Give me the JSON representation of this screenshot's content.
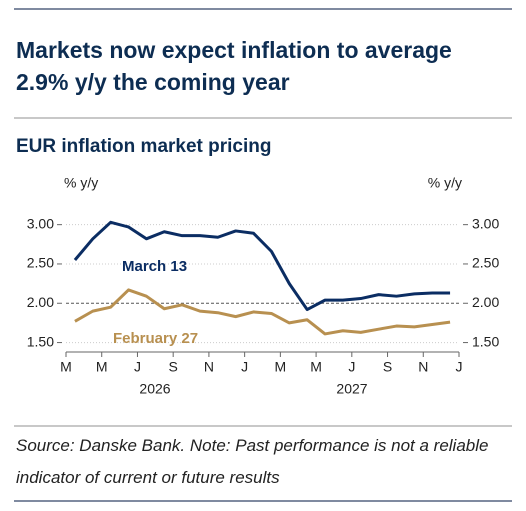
{
  "chart_data": {
    "type": "line",
    "title": "Markets now expect inflation to average 2.9% y/y the coming year",
    "subtitle": "EUR inflation market pricing",
    "ylabel": "% y/y",
    "y2label": "% y/y",
    "source": "Source: Danske Bank. Note: Past performance is not a reliable indicator of current or future results",
    "xlim": [
      0,
      22
    ],
    "xticks": [
      {
        "value": 0,
        "label": "M"
      },
      {
        "value": 2,
        "label": "M"
      },
      {
        "value": 4,
        "label": "J"
      },
      {
        "value": 6,
        "label": "S"
      },
      {
        "value": 8,
        "label": "N"
      },
      {
        "value": 10,
        "label": "J"
      },
      {
        "value": 12,
        "label": "M"
      },
      {
        "value": 14,
        "label": "M"
      },
      {
        "value": 16,
        "label": "J"
      },
      {
        "value": 18,
        "label": "S"
      },
      {
        "value": 20,
        "label": "N"
      },
      {
        "value": 22,
        "label": "J"
      }
    ],
    "year_labels": [
      "2026",
      "2027"
    ],
    "ylim": [
      1.38,
      3.25
    ],
    "yticks": [
      {
        "value": 1.5,
        "label": "1.50"
      },
      {
        "value": 2,
        "label": "2.00"
      },
      {
        "value": 2.5,
        "label": "2.50"
      },
      {
        "value": 3,
        "label": "3.00"
      }
    ],
    "y2lim": [
      1.38,
      3.25
    ],
    "y2ticks": [
      {
        "value": 1.5,
        "label": "1.50"
      },
      {
        "value": 2,
        "label": "2.00"
      },
      {
        "value": 2.5,
        "label": "2.50"
      },
      {
        "value": 3,
        "label": "3.00"
      }
    ],
    "reference_line": 2,
    "grid": true,
    "x": [
      0.5,
      1.5,
      2.5,
      3.5,
      4.5,
      5.5,
      6.5,
      7.5,
      8.5,
      9.5,
      10.5,
      11.5,
      12.5,
      13.5,
      14.5,
      15.5,
      16.5,
      17.5,
      18.5,
      19.5,
      20.5,
      21.5
    ],
    "series": [
      {
        "name": "March 13",
        "color": "#0b2d63",
        "values": [
          2.55,
          2.82,
          3.03,
          2.97,
          2.82,
          2.91,
          2.86,
          2.86,
          2.84,
          2.92,
          2.89,
          2.66,
          2.25,
          1.92,
          2.04,
          2.04,
          2.06,
          2.11,
          2.09,
          2.12,
          2.13,
          2.13
        ]
      },
      {
        "name": "February 27",
        "color": "#b89050",
        "values": [
          1.77,
          1.9,
          1.95,
          2.17,
          2.09,
          1.93,
          1.98,
          1.9,
          1.88,
          1.83,
          1.89,
          1.87,
          1.75,
          1.79,
          1.61,
          1.65,
          1.63,
          1.67,
          1.71,
          1.7,
          1.73,
          1.76
        ]
      }
    ]
  }
}
